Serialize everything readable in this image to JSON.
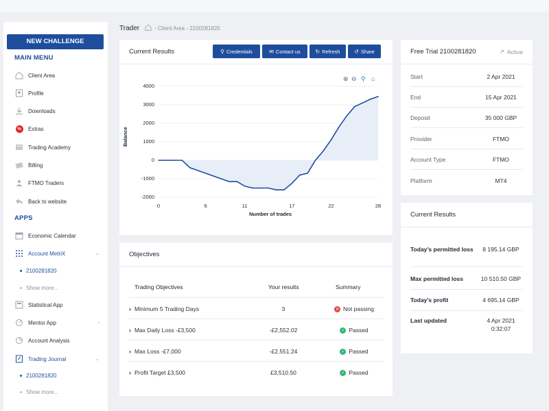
{
  "sidebar": {
    "new_challenge": "NEW CHALLENGE",
    "main_menu_title": "MAIN MENU",
    "main_menu": [
      {
        "label": "Client Area",
        "icon": "home-icon"
      },
      {
        "label": "Profile",
        "icon": "user-icon"
      },
      {
        "label": "Downloads",
        "icon": "download-icon"
      },
      {
        "label": "Extras",
        "icon": "percent-icon"
      },
      {
        "label": "Trading Academy",
        "icon": "academy-icon"
      },
      {
        "label": "Billing",
        "icon": "billing-icon"
      },
      {
        "label": "FTMO Traders",
        "icon": "traders-icon"
      },
      {
        "label": "Back to website",
        "icon": "back-icon"
      }
    ],
    "apps_title": "APPS",
    "apps": [
      {
        "label": "Economic Calendar",
        "icon": "calendar-icon"
      },
      {
        "label": "Account MetriX",
        "icon": "metrix-icon"
      },
      {
        "label": "Statistical App",
        "icon": "stats-icon"
      },
      {
        "label": "Mentor App",
        "icon": "mentor-icon"
      },
      {
        "label": "Account Analysis",
        "icon": "analysis-icon"
      },
      {
        "label": "Trading Journal",
        "icon": "journal-icon"
      }
    ],
    "metrix_account": "2100281820",
    "metrix_more": "Show more...",
    "journal_account": "2100281820",
    "journal_more": "Show more..."
  },
  "breadcrumb": {
    "title": "Trader",
    "path": "- Client Area - 2100281820"
  },
  "results_card": {
    "title": "Current Results",
    "buttons": {
      "credentials": "Credentials",
      "contact": "Contact us",
      "refresh": "Refresh",
      "share": "Share"
    }
  },
  "chart_data": {
    "type": "area",
    "title": "",
    "xlabel": "Number of trades",
    "ylabel": "Balance",
    "xlim": [
      0,
      28
    ],
    "ylim": [
      -2000,
      4000
    ],
    "xticks": [
      0,
      6,
      11,
      17,
      22,
      28
    ],
    "yticks": [
      4000,
      3000,
      2000,
      1000,
      0,
      -1000,
      -2000
    ],
    "x": [
      0,
      1,
      2,
      3,
      4,
      5,
      6,
      7,
      8,
      9,
      10,
      11,
      12,
      13,
      14,
      15,
      16,
      17,
      18,
      19,
      20,
      21,
      22,
      23,
      24,
      25,
      26,
      27,
      28
    ],
    "y": [
      0,
      0,
      0,
      0,
      -400,
      -550,
      -700,
      -850,
      -1000,
      -1150,
      -1150,
      -1400,
      -1500,
      -1500,
      -1500,
      -1600,
      -1600,
      -1250,
      -800,
      -700,
      0,
      500,
      1100,
      1800,
      2400,
      2900,
      3100,
      3300,
      3450
    ],
    "line_color": "#1e4d9e",
    "fill_color": "#e8eef8",
    "grid": true
  },
  "objectives": {
    "title": "Objectives",
    "headers": [
      "Trading Objectives",
      "Your results",
      "Summary"
    ],
    "rows": [
      {
        "name": "Minimum 5 Trading Days",
        "result": "3",
        "status": "Not passing",
        "ok": false
      },
      {
        "name": "Max Daily Loss -£3,500",
        "result": "-£2,552.02",
        "status": "Passed",
        "ok": true
      },
      {
        "name": "Max Loss -£7,000",
        "result": "-£2,551.24",
        "status": "Passed",
        "ok": true
      },
      {
        "name": "Profit Target £3,500",
        "result": "£3,510.50",
        "status": "Passed",
        "ok": true
      }
    ]
  },
  "trial_card": {
    "title": "Free Trial 2100281820",
    "status": "Active",
    "rows": [
      {
        "k": "Start",
        "v": "2 Apr 2021"
      },
      {
        "k": "End",
        "v": "15 Apr 2021"
      },
      {
        "k": "Deposit",
        "v": "35 000 GBP"
      },
      {
        "k": "Provider",
        "v": "FTMO"
      },
      {
        "k": "Account Type",
        "v": "FTMO"
      },
      {
        "k": "Platform",
        "v": "MT4"
      }
    ]
  },
  "current_results": {
    "title": "Current Results",
    "rows": [
      {
        "k": "Today's permitted loss",
        "v": "8 195.14 GBP"
      },
      {
        "k": "Max permitted loss",
        "v": "10 510.50 GBP"
      },
      {
        "k": "Today's profit",
        "v": "4 695.14 GBP"
      },
      {
        "k": "Last updated",
        "v": "4 Apr 2021",
        "v2": "0:32:07"
      }
    ]
  },
  "colors": {
    "primary": "#1e4d9e",
    "pass": "#2eb872",
    "fail": "#e04848"
  }
}
